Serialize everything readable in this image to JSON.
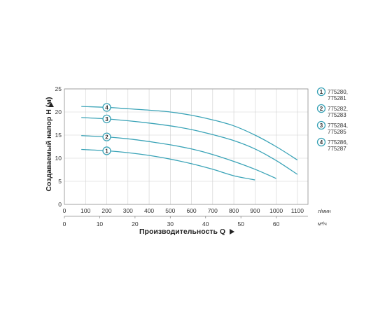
{
  "chart_data": {
    "type": "line",
    "ylabel": "Создаваемый напор H (м)",
    "ylim": [
      0,
      25
    ],
    "yticks": [
      0,
      5,
      10,
      15,
      20,
      25
    ],
    "x_primary": {
      "unit": "л/мин",
      "ticks": [
        0,
        100,
        200,
        300,
        400,
        500,
        600,
        700,
        800,
        900,
        1000,
        1100
      ],
      "lim": [
        0,
        1150
      ]
    },
    "x_secondary": {
      "label": "Производительность Q",
      "unit": "м³/ч",
      "ticks": [
        0,
        10,
        20,
        30,
        40,
        50,
        60
      ]
    },
    "grid": true,
    "legend_position": "right",
    "colors": {
      "line": "#3aa3b7",
      "marker": "#3aa3b7",
      "grid": "#cfcfcf",
      "axis": "#8c8c8c"
    },
    "series": [
      {
        "marker": "1",
        "name": "775280, 775281",
        "x": [
          80,
          200,
          300,
          400,
          500,
          600,
          700,
          800,
          900
        ],
        "y": [
          11.9,
          11.6,
          11.2,
          10.6,
          9.8,
          8.8,
          7.6,
          6.2,
          5.3
        ],
        "marker_x": 200
      },
      {
        "marker": "2",
        "name": "775282, 775283",
        "x": [
          80,
          200,
          300,
          400,
          500,
          600,
          700,
          800,
          900,
          1000
        ],
        "y": [
          14.9,
          14.6,
          14.2,
          13.6,
          12.9,
          12.0,
          10.8,
          9.3,
          7.6,
          5.6
        ],
        "marker_x": 200
      },
      {
        "marker": "3",
        "name": "775284, 775285",
        "x": [
          80,
          200,
          300,
          400,
          500,
          600,
          700,
          800,
          900,
          1000,
          1100
        ],
        "y": [
          18.8,
          18.5,
          18.1,
          17.6,
          17.0,
          16.2,
          15.1,
          13.8,
          12.0,
          9.5,
          6.5
        ],
        "marker_x": 200
      },
      {
        "marker": "4",
        "name": "775286, 775287",
        "x": [
          80,
          200,
          300,
          400,
          500,
          600,
          700,
          800,
          900,
          1000,
          1100
        ],
        "y": [
          21.2,
          21.0,
          20.7,
          20.4,
          20.0,
          19.3,
          18.3,
          17.0,
          15.0,
          12.5,
          9.6
        ],
        "marker_x": 200
      }
    ]
  }
}
